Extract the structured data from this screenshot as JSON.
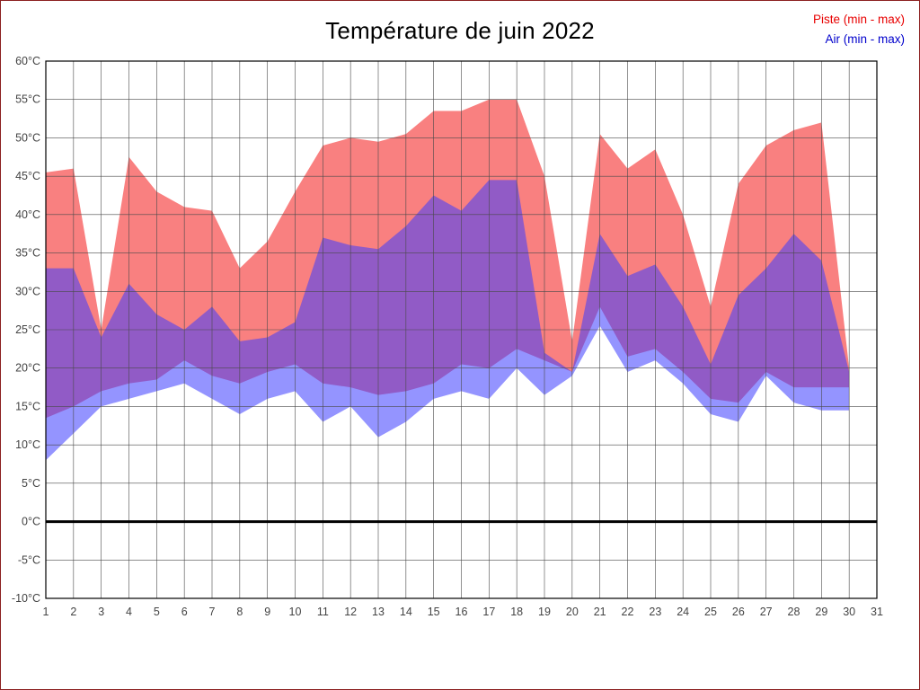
{
  "page": {
    "background": "#ffffff",
    "border_color": "#8b2020"
  },
  "title": "Température de juin 2022",
  "legend": {
    "items": [
      {
        "label": "Piste (min - max)",
        "color": "#e80000"
      },
      {
        "label": "Air (min - max)",
        "color": "#0000cc"
      }
    ]
  },
  "chart_data": {
    "type": "area",
    "title": "Température de juin 2022",
    "xlabel": "",
    "ylabel": "",
    "xlim": [
      1,
      31
    ],
    "ylim": [
      -10,
      60
    ],
    "grid": true,
    "zero_line": true,
    "grid_color": "#4a4a4a",
    "axis_text_color": "#444444",
    "x_ticks": {
      "values": [
        1,
        2,
        3,
        4,
        5,
        6,
        7,
        8,
        9,
        10,
        11,
        12,
        13,
        14,
        15,
        16,
        17,
        18,
        19,
        20,
        21,
        22,
        23,
        24,
        25,
        26,
        27,
        28,
        29,
        30,
        31
      ],
      "labels": [
        "1",
        "2",
        "3",
        "4",
        "5",
        "6",
        "7",
        "8",
        "9",
        "10",
        "11",
        "12",
        "13",
        "14",
        "15",
        "16",
        "17",
        "18",
        "19",
        "20",
        "21",
        "22",
        "23",
        "24",
        "25",
        "26",
        "27",
        "28",
        "29",
        "30",
        "31"
      ]
    },
    "y_ticks": {
      "values": [
        60,
        55,
        50,
        45,
        40,
        35,
        30,
        25,
        20,
        15,
        10,
        5,
        0,
        -5,
        -10
      ],
      "labels": [
        "60°C",
        "55°C",
        "50°C",
        "45°C",
        "40°C",
        "35°C",
        "30°C",
        "25°C",
        "20°C",
        "15°C",
        "10°C",
        "5°C",
        "0°C",
        "-5°C",
        "-10°C"
      ]
    },
    "x": [
      1,
      2,
      3,
      4,
      5,
      6,
      7,
      8,
      9,
      10,
      11,
      12,
      13,
      14,
      15,
      16,
      17,
      18,
      19,
      20,
      21,
      22,
      23,
      24,
      25,
      26,
      27,
      28,
      29,
      30
    ],
    "series": [
      {
        "name": "Piste (min - max)",
        "legend_color": "#e80000",
        "fill": "#f98080",
        "max": [
          45.5,
          46,
          25,
          47.5,
          43,
          41,
          40.5,
          33,
          36.5,
          43,
          49,
          50,
          49.5,
          50.5,
          53.5,
          53.5,
          55,
          55,
          45,
          23.5,
          50.5,
          46,
          48.5,
          40,
          28,
          44,
          49,
          51,
          52,
          20
        ],
        "min": [
          13.5,
          15,
          17,
          18,
          18.5,
          21,
          19,
          18,
          19.5,
          20.5,
          18,
          17.5,
          16.5,
          17,
          18,
          20.5,
          20,
          22.5,
          21,
          19.5,
          28,
          21.5,
          22.5,
          19.5,
          16,
          15.5,
          19.5,
          17.5,
          17.5,
          17.5
        ]
      },
      {
        "name": "Air (min - max)",
        "legend_color": "#0000cc",
        "fill": "rgba(60,60,255,0.55)",
        "max": [
          33,
          33,
          24,
          31,
          27,
          25,
          28,
          23.5,
          24,
          26,
          37,
          36,
          35.5,
          38.5,
          42.5,
          40.5,
          44.5,
          44.5,
          22,
          19.5,
          37.5,
          32,
          33.5,
          28,
          20.5,
          29.5,
          33,
          37.5,
          34,
          19.5
        ],
        "min": [
          8,
          11.5,
          15,
          16,
          17,
          18,
          16,
          14,
          16,
          17,
          13,
          15,
          11,
          13,
          16,
          17,
          16,
          20,
          16.5,
          19,
          25.5,
          19.5,
          21,
          18,
          14,
          13,
          19,
          15.5,
          14.5,
          14.5
        ]
      }
    ]
  }
}
